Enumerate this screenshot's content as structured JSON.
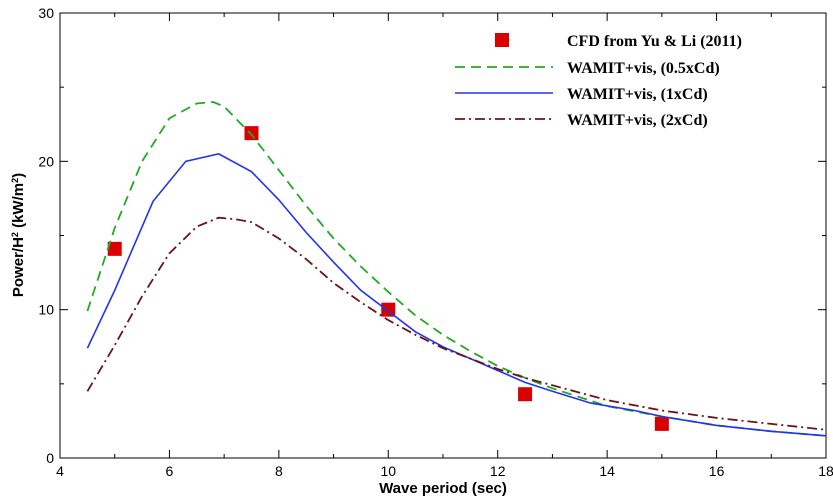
{
  "chart_data": {
    "type": "line",
    "xlabel": "Wave period (sec)",
    "ylabel_main": "Power/H",
    "ylabel_sup1": "2",
    "ylabel_mid": " (kW/m",
    "ylabel_sup2": "2",
    "ylabel_end": ")",
    "xlim": [
      4,
      18
    ],
    "ylim": [
      0,
      30
    ],
    "xticks": [
      4,
      6,
      8,
      10,
      12,
      14,
      16,
      18
    ],
    "yticks": [
      0,
      10,
      20,
      30
    ],
    "grid": false,
    "legend_position": "top-right",
    "series": [
      {
        "name": "CFD from Yu & Li (2011)",
        "style": "markers",
        "color": "#d90000",
        "x": [
          5,
          7.5,
          10,
          12.5,
          15
        ],
        "y": [
          14.1,
          21.9,
          10.0,
          4.3,
          2.3
        ]
      },
      {
        "name": "WAMIT+vis, (0.5xCd)",
        "style": "dashed",
        "color": "#22aa22",
        "x": [
          4.5,
          5.0,
          5.5,
          6.0,
          6.5,
          6.8,
          7.0,
          7.5,
          8.0,
          8.5,
          9.0,
          9.5,
          10.0,
          10.5,
          11.0,
          11.5,
          12.0,
          12.5,
          13.0,
          13.5,
          14.0,
          15.0,
          16.0,
          17.0,
          18.0
        ],
        "y": [
          9.9,
          15.5,
          20.0,
          22.9,
          23.9,
          24.0,
          23.7,
          21.8,
          19.4,
          17.0,
          14.8,
          12.9,
          11.2,
          9.6,
          8.3,
          7.2,
          6.2,
          5.4,
          4.7,
          4.1,
          3.5,
          2.8,
          2.2,
          1.8,
          1.5
        ]
      },
      {
        "name": "WAMIT+vis, (1xCd)",
        "style": "solid",
        "color": "#2233ee",
        "x": [
          4.5,
          5.0,
          5.7,
          6.3,
          6.9,
          7.5,
          8.0,
          8.5,
          9.0,
          9.5,
          10.0,
          10.5,
          11.0,
          11.5,
          12.0,
          12.5,
          13.0,
          13.7,
          14.5,
          15.0,
          16.0,
          17.0,
          18.0
        ],
        "y": [
          7.4,
          11.3,
          17.3,
          20.0,
          20.5,
          19.3,
          17.4,
          15.2,
          13.2,
          11.3,
          9.9,
          8.5,
          7.5,
          6.7,
          5.9,
          5.1,
          4.5,
          3.7,
          3.2,
          2.8,
          2.2,
          1.8,
          1.5
        ]
      },
      {
        "name": "WAMIT+vis, (2xCd)",
        "style": "dashdot",
        "color": "#6b1414",
        "x": [
          4.5,
          5.0,
          5.5,
          6.0,
          6.5,
          6.9,
          7.2,
          7.5,
          8.0,
          8.5,
          9.0,
          9.5,
          10.0,
          10.5,
          11.0,
          11.5,
          12.0,
          12.5,
          13.0,
          13.5,
          14.0,
          15.0,
          16.0,
          17.0,
          18.0
        ],
        "y": [
          4.5,
          7.6,
          10.9,
          13.8,
          15.6,
          16.2,
          16.1,
          15.9,
          14.8,
          13.4,
          11.8,
          10.5,
          9.3,
          8.3,
          7.4,
          6.7,
          6.0,
          5.4,
          4.9,
          4.4,
          3.9,
          3.2,
          2.7,
          2.3,
          1.9
        ]
      }
    ]
  }
}
